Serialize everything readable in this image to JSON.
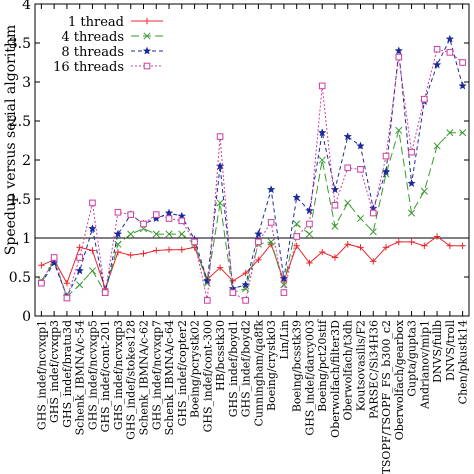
{
  "chart_data": {
    "type": "line",
    "title": "",
    "xlabel": "",
    "ylabel": "Speedup versus serial algorithm",
    "ylim": [
      0,
      4
    ],
    "yticks": [
      "0",
      "0.5",
      "1",
      "1.5",
      "2",
      "2.5",
      "3",
      "3.5",
      "4"
    ],
    "reference_line": 1,
    "legend_position": "top-left",
    "categories": [
      "GHS_indef/ncvxqp1",
      "GHS_indef/cvxqp3",
      "GHS_indef/bratu3d",
      "Schenk_IBMNA/c-54",
      "GHS_indef/ncvxqp5",
      "GHS_indef/cont-201",
      "GHS_indef/ncvxqp3",
      "GHS_indef/stokes128",
      "Schenk_IBMNA/c-62",
      "GHS_indef/ncvxqp7",
      "Schenk_IBMNA/c-64",
      "GHS_indef/copter2",
      "Boeing/pcrystk02",
      "GHS_indef/cont-300",
      "HB/bcsstk30",
      "GHS_indef/boyd1",
      "GHS_indef/boyd2",
      "Cunningham/qa8fk",
      "Boeing/crystk03",
      "Lin/Lin",
      "Boeing/bcsstk39",
      "GHS_indef/darcy003",
      "Boeing/pct20stif",
      "Oberwolfach/filter3D",
      "Oberwolfach/t3dh",
      "Koutsovasilis/F2",
      "PARSEC/Si34H36",
      "TSOPF/TSOPF_FS_b300_c2",
      "Oberwolfach/gearbox",
      "Gupta/gupta3",
      "Andrianov/mip1",
      "DNVS/fullb",
      "DNVS/troll",
      "Chen/pkustk14"
    ],
    "series": [
      {
        "name": "1 thread",
        "color": "#e8282d",
        "marker": "plus",
        "dash": "solid",
        "values": [
          0.65,
          0.72,
          0.42,
          0.88,
          0.84,
          0.35,
          0.82,
          0.78,
          0.8,
          0.84,
          0.85,
          0.85,
          0.88,
          0.47,
          0.62,
          0.45,
          0.55,
          0.72,
          0.92,
          0.45,
          0.9,
          0.68,
          0.82,
          0.75,
          0.92,
          0.88,
          0.7,
          0.88,
          0.95,
          0.95,
          0.9,
          1.02,
          0.9,
          0.9
        ]
      },
      {
        "name": "4 threads",
        "color": "#3a9a2e",
        "marker": "x",
        "dash": "8,4",
        "values": [
          0.45,
          0.7,
          0.25,
          0.4,
          0.58,
          0.3,
          0.92,
          1.05,
          1.12,
          1.05,
          1.05,
          1.05,
          0.92,
          0.42,
          1.45,
          0.3,
          0.35,
          0.92,
          0.95,
          0.4,
          1.18,
          1.05,
          2.0,
          1.15,
          1.45,
          1.25,
          1.08,
          1.82,
          2.38,
          1.32,
          1.6,
          2.18,
          2.35,
          2.35
        ]
      },
      {
        "name": "8 threads",
        "color": "#1a2a9a",
        "marker": "star",
        "dash": "4,3",
        "values": [
          0.42,
          0.68,
          0.25,
          0.58,
          1.12,
          0.3,
          1.05,
          1.3,
          1.18,
          1.25,
          1.32,
          1.28,
          0.98,
          0.45,
          1.92,
          0.35,
          0.4,
          1.05,
          1.62,
          0.48,
          1.52,
          1.35,
          2.35,
          1.62,
          2.3,
          2.18,
          1.38,
          1.85,
          3.4,
          1.7,
          2.75,
          3.22,
          3.55,
          2.95
        ]
      },
      {
        "name": "16 threads",
        "color": "#cc3d9f",
        "marker": "square",
        "dash": "2,2",
        "values": [
          0.42,
          0.75,
          0.23,
          0.75,
          1.45,
          0.3,
          1.33,
          1.3,
          1.18,
          1.3,
          1.25,
          1.22,
          0.95,
          0.2,
          2.3,
          0.3,
          0.2,
          0.95,
          1.2,
          0.3,
          1.02,
          1.18,
          2.95,
          1.42,
          1.9,
          1.88,
          1.32,
          2.05,
          3.32,
          2.1,
          2.78,
          3.42,
          3.38,
          3.25
        ]
      }
    ]
  }
}
